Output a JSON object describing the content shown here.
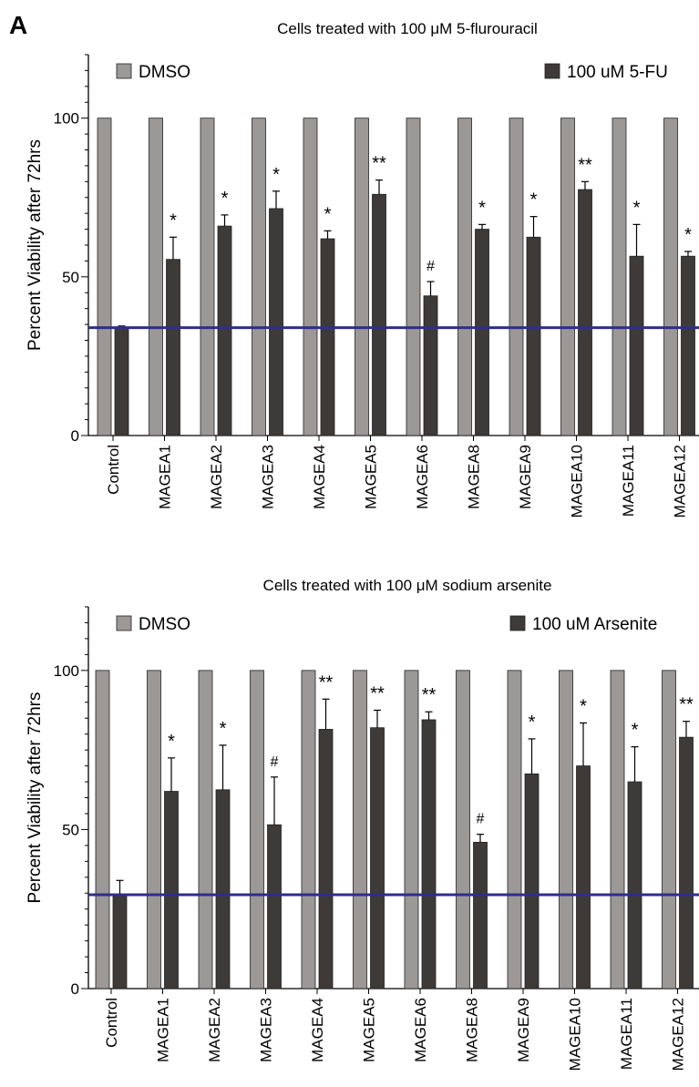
{
  "panel_label": "A",
  "colors": {
    "dmso": "#9c9896",
    "treated": "#3d3a38",
    "baseline": "#2e2e8c",
    "axis": "#000000",
    "error": "#000000"
  },
  "chart_data": [
    {
      "type": "bar",
      "title": "Cells treated with 100 μM 5-flurouracil",
      "ylabel": "Percent Viability after 72hrs",
      "xlabel": "",
      "ylim": [
        0,
        120
      ],
      "yticks": [
        0,
        50,
        100
      ],
      "legend_placement": "top",
      "grid": false,
      "categories": [
        "Control",
        "MAGEA1",
        "MAGEA2",
        "MAGEA3",
        "MAGEA4",
        "MAGEA5",
        "MAGEA6",
        "MAGEA8",
        "MAGEA9",
        "MAGEA10",
        "MAGEA11",
        "MAGEA12"
      ],
      "series": [
        {
          "name": "DMSO",
          "values": [
            100,
            100,
            100,
            100,
            100,
            100,
            100,
            100,
            100,
            100,
            100,
            100
          ]
        },
        {
          "name": "100 uM 5-FU",
          "values": [
            34,
            55.5,
            66,
            71.5,
            62,
            76,
            44,
            65,
            62.5,
            77.5,
            56.5,
            56.5
          ],
          "errors": [
            0.5,
            7,
            3.5,
            5.5,
            2.5,
            4.5,
            4.5,
            1.5,
            6.5,
            2.5,
            10,
            1.5
          ]
        }
      ],
      "annotations": [
        "",
        "*",
        "*",
        "*",
        "*",
        "**",
        "#",
        "*",
        "*",
        "**",
        "*",
        "*"
      ],
      "reference_line": 34
    },
    {
      "type": "bar",
      "title": "Cells treated with 100 μM sodium arsenite",
      "ylabel": "Percent Viability after 72hrs",
      "xlabel": "",
      "ylim": [
        0,
        120
      ],
      "yticks": [
        0,
        50,
        100
      ],
      "legend_placement": "top",
      "grid": false,
      "categories": [
        "Control",
        "MAGEA1",
        "MAGEA2",
        "MAGEA3",
        "MAGEA4",
        "MAGEA5",
        "MAGEA6",
        "MAGEA8",
        "MAGEA9",
        "MAGEA10",
        "MAGEA11",
        "MAGEA12"
      ],
      "series": [
        {
          "name": "DMSO",
          "values": [
            100,
            100,
            100,
            100,
            100,
            100,
            100,
            100,
            100,
            100,
            100,
            100
          ]
        },
        {
          "name": "100 uM Arsenite",
          "values": [
            29.5,
            62,
            62.5,
            51.5,
            81.5,
            82,
            84.5,
            46,
            67.5,
            70,
            65,
            79
          ],
          "errors": [
            4.5,
            10.5,
            14,
            15,
            9.5,
            5.5,
            2.5,
            2.5,
            11,
            13.5,
            11,
            5
          ]
        }
      ],
      "annotations": [
        "",
        "*",
        "*",
        "#",
        "**",
        "**",
        "**",
        "#",
        "*",
        "*",
        "*",
        "**"
      ],
      "reference_line": 29.5
    }
  ]
}
